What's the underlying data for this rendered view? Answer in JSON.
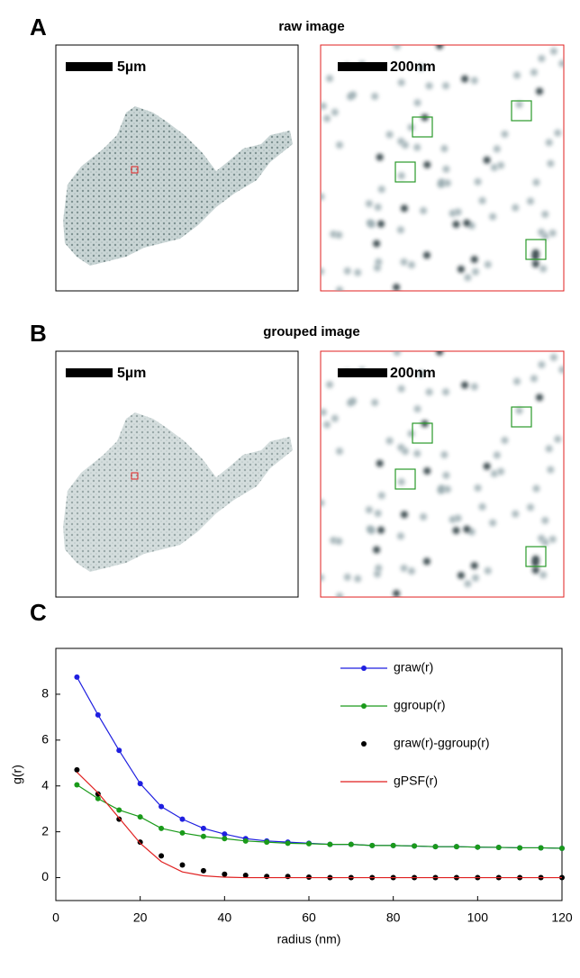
{
  "panels": {
    "A": {
      "label": "A",
      "title": "raw image",
      "scale_left": "5µm",
      "scale_right": "200nm"
    },
    "B": {
      "label": "B",
      "title": "grouped image",
      "scale_left": "5µm",
      "scale_right": "200nm"
    },
    "C": {
      "label": "C"
    }
  },
  "chart_data": {
    "type": "line",
    "xlabel": "radius (nm)",
    "ylabel": "g(r)",
    "x": [
      5,
      10,
      15,
      20,
      25,
      30,
      35,
      40,
      45,
      50,
      55,
      60,
      65,
      70,
      75,
      80,
      85,
      90,
      95,
      100,
      105,
      110,
      115,
      120
    ],
    "series": [
      {
        "name": "graw(r)",
        "color": "#1f1fe0",
        "line": true,
        "markers": true,
        "values": [
          8.75,
          7.1,
          5.55,
          4.1,
          3.1,
          2.55,
          2.15,
          1.9,
          1.7,
          1.6,
          1.55,
          1.5,
          1.45,
          1.45,
          1.4,
          1.4,
          1.38,
          1.35,
          1.35,
          1.33,
          1.32,
          1.3,
          1.3,
          1.28
        ]
      },
      {
        "name": "ggroup(r)",
        "color": "#1a9a1a",
        "line": true,
        "markers": true,
        "values": [
          4.05,
          3.45,
          2.95,
          2.65,
          2.15,
          1.95,
          1.8,
          1.7,
          1.6,
          1.55,
          1.5,
          1.48,
          1.45,
          1.45,
          1.4,
          1.4,
          1.38,
          1.35,
          1.35,
          1.33,
          1.32,
          1.3,
          1.3,
          1.28
        ]
      },
      {
        "name": "graw(r)-ggroup(r)",
        "color": "#000000",
        "line": false,
        "markers": true,
        "values": [
          4.7,
          3.65,
          2.55,
          1.55,
          0.95,
          0.55,
          0.3,
          0.15,
          0.1,
          0.05,
          0.05,
          0.02,
          0,
          0,
          0,
          0,
          0,
          0,
          0,
          0,
          0,
          0,
          0,
          0
        ]
      },
      {
        "name": "gPSF(r)",
        "color": "#e01f1f",
        "line": true,
        "markers": false,
        "values": [
          4.6,
          3.7,
          2.6,
          1.5,
          0.7,
          0.25,
          0.08,
          0.02,
          0,
          0,
          0,
          0,
          0,
          0,
          0,
          0,
          0,
          0,
          0,
          0,
          0,
          0,
          0,
          0
        ]
      }
    ],
    "xlim": [
      0,
      120
    ],
    "xticks": [
      0,
      20,
      40,
      60,
      80,
      100,
      120
    ],
    "ylim": [
      -1,
      10
    ],
    "yticks": [
      0,
      2,
      4,
      6,
      8
    ],
    "grid": false,
    "legend": "upper right"
  }
}
